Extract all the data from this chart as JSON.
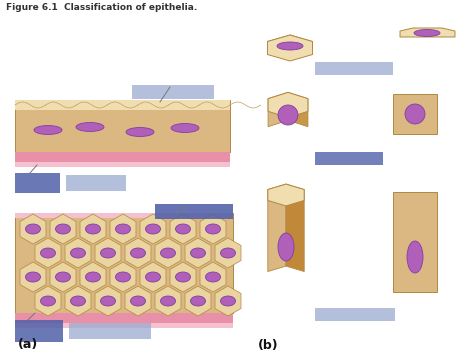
{
  "title": "Figure 6.1  Classification of epithelia.",
  "title_fontsize": 6.5,
  "title_color": "#333333",
  "bg_color": "#ffffff",
  "label_box_light": "#9baad0",
  "label_box_dark": "#5060a8",
  "cell_fill": "#dbb882",
  "cell_fill_light": "#ead4a0",
  "cell_top_fill": "#f0ddb0",
  "nucleus_color": "#b060b8",
  "nucleus_edge": "#8040a0",
  "pink_layer": "#e890a8",
  "pink_light": "#f5c0d0",
  "tissue_ec": "#b08840",
  "a_label": "(a)",
  "b_label": "(b)"
}
